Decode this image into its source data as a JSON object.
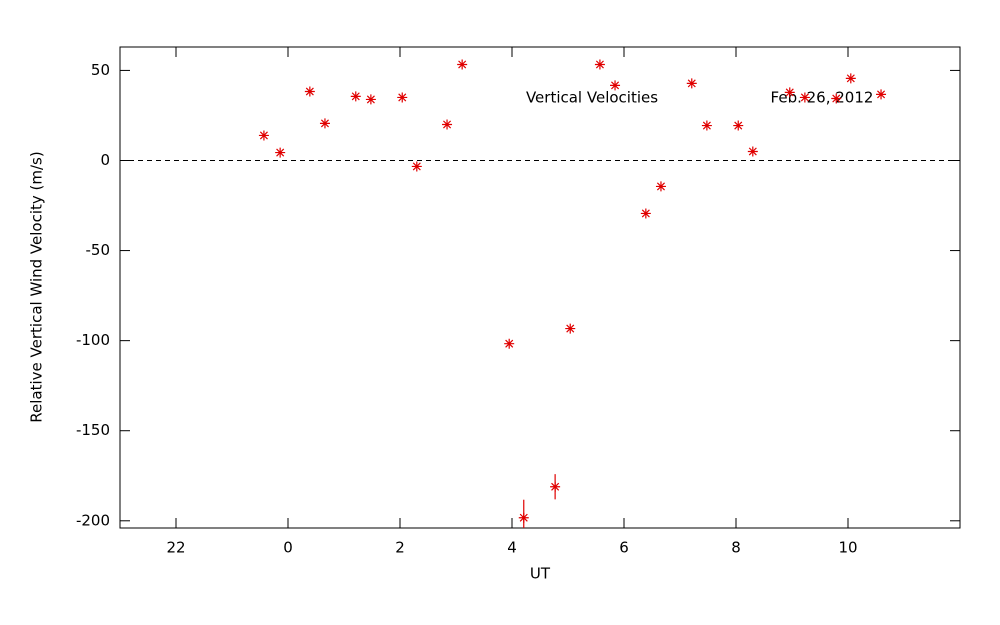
{
  "chart_data": {
    "type": "scatter",
    "x_label": "UT",
    "y_label": "Relative Vertical Wind Velocity (m/s)",
    "annotations": [
      "Vertical Velocities",
      "Feb. 26, 2012"
    ],
    "color": "#e00000",
    "reference_line": 0,
    "xlim": [
      21,
      36
    ],
    "ylim": [
      -204,
      63
    ],
    "xticks": [
      {
        "value": 22,
        "label": "22"
      },
      {
        "value": 24,
        "label": "0"
      },
      {
        "value": 26,
        "label": "2"
      },
      {
        "value": 28,
        "label": "4"
      },
      {
        "value": 30,
        "label": "6"
      },
      {
        "value": 32,
        "label": "8"
      },
      {
        "value": 34,
        "label": "10"
      }
    ],
    "yticks": [
      -200,
      -150,
      -100,
      -50,
      0,
      50
    ],
    "x": [
      23.57,
      23.86,
      24.39,
      24.66,
      25.21,
      25.48,
      26.04,
      26.3,
      26.84,
      27.11,
      27.95,
      28.21,
      28.77,
      29.04,
      29.57,
      29.84,
      30.39,
      30.66,
      31.21,
      31.48,
      32.04,
      32.3,
      32.96,
      33.23,
      33.79,
      34.05,
      34.59
    ],
    "values": [
      13.9,
      4.4,
      38.3,
      20.6,
      35.6,
      33.9,
      35,
      -3.3,
      20,
      53.3,
      -101.7,
      -198.3,
      -181.1,
      -93.3,
      53.3,
      41.7,
      -29.4,
      -14.4,
      42.8,
      19.4,
      19.4,
      5,
      37.8,
      35,
      34.4,
      45.6,
      36.7
    ],
    "errors": [
      null,
      null,
      null,
      null,
      null,
      null,
      null,
      null,
      null,
      null,
      null,
      10,
      7,
      null,
      null,
      null,
      null,
      null,
      null,
      null,
      null,
      null,
      null,
      null,
      null,
      null,
      null
    ]
  }
}
